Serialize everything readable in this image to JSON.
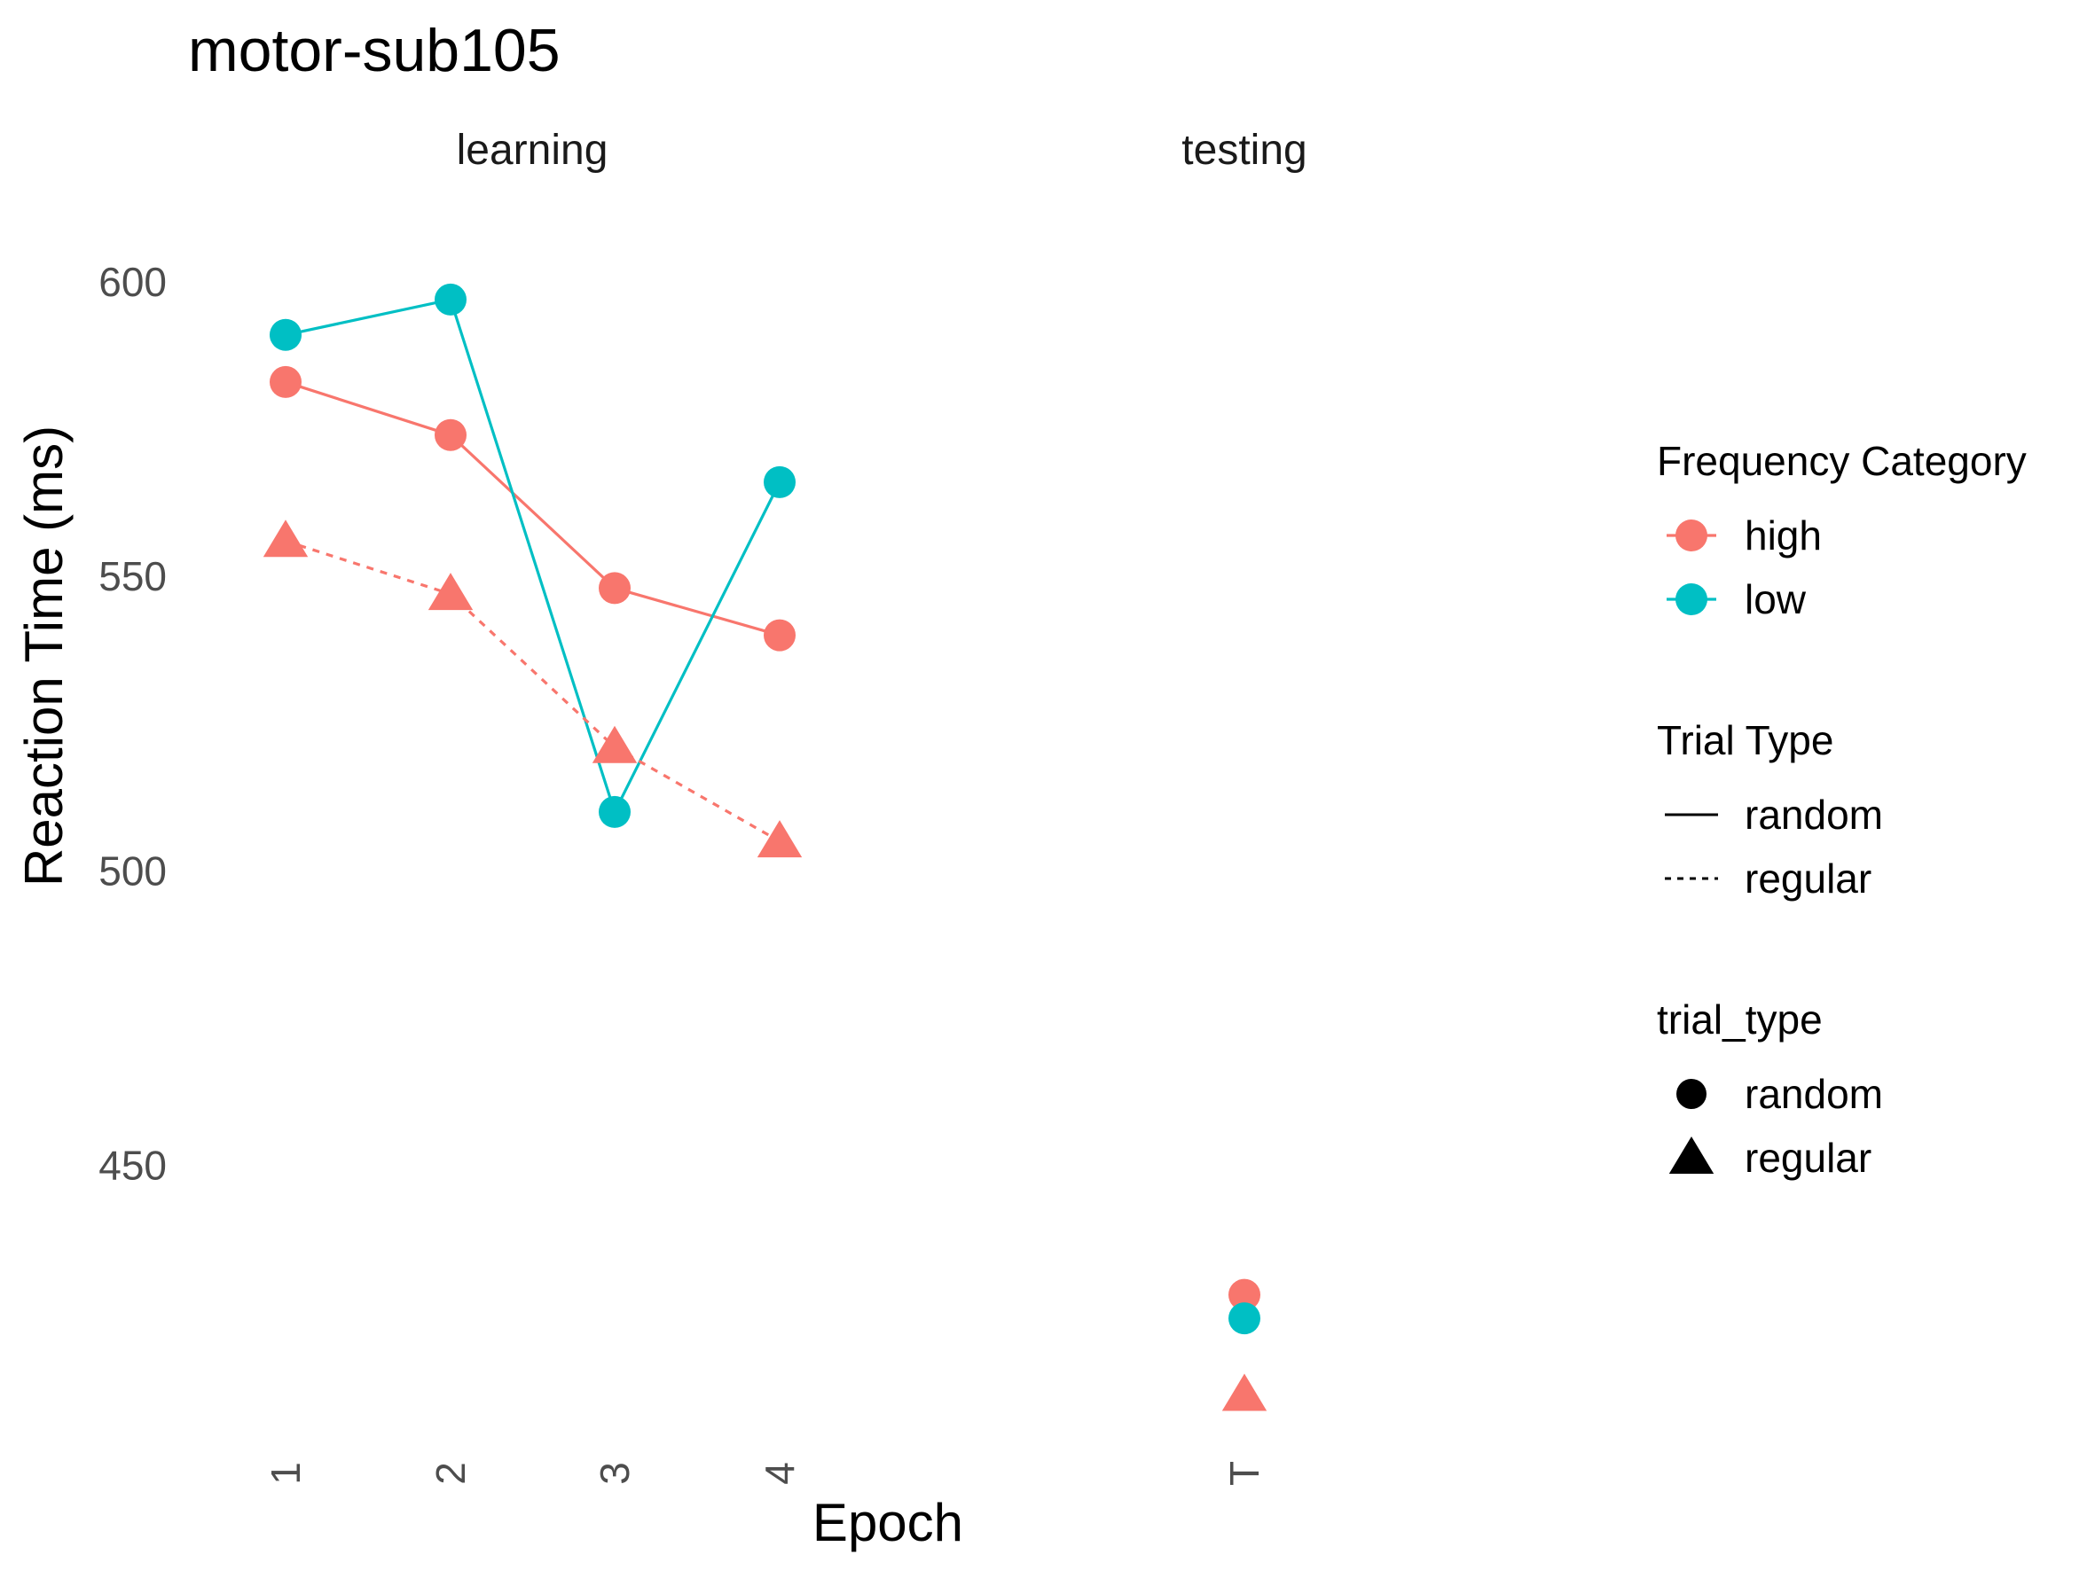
{
  "chart_data": {
    "type": "line",
    "title": "motor-sub105",
    "xlabel": "Epoch",
    "ylabel": "Reaction Time (ms)",
    "y_ticks": [
      450,
      500,
      550,
      600
    ],
    "ylim": [
      404,
      614
    ],
    "grid": false,
    "legend_position": "right",
    "colors": {
      "high": "#F8766D",
      "low": "#00BFC4"
    },
    "facets": [
      {
        "label": "learning",
        "categories": [
          "1",
          "2",
          "3",
          "4"
        ],
        "series": [
          {
            "frequency": "high",
            "trial_type": "random",
            "linetype": "solid",
            "shape": "circle",
            "values": [
              583,
              574,
              548,
              540
            ]
          },
          {
            "frequency": "low",
            "trial_type": "random",
            "linetype": "solid",
            "shape": "circle",
            "values": [
              591,
              597,
              510,
              566
            ]
          },
          {
            "frequency": "high",
            "trial_type": "regular",
            "linetype": "dashed",
            "shape": "triangle",
            "values": [
              556,
              547,
              521,
              505
            ]
          }
        ]
      },
      {
        "label": "testing",
        "categories": [
          "T"
        ],
        "series": [
          {
            "frequency": "high",
            "trial_type": "random",
            "linetype": "solid",
            "shape": "circle",
            "values": [
              428
            ]
          },
          {
            "frequency": "low",
            "trial_type": "random",
            "linetype": "solid",
            "shape": "circle",
            "values": [
              424
            ]
          },
          {
            "frequency": "high",
            "trial_type": "regular",
            "linetype": "dashed",
            "shape": "triangle",
            "values": [
              411
            ]
          }
        ]
      }
    ],
    "legends": [
      {
        "title": "Frequency Category",
        "kind": "color",
        "items": [
          {
            "label": "high",
            "key": "high"
          },
          {
            "label": "low",
            "key": "low"
          }
        ]
      },
      {
        "title": "Trial Type",
        "kind": "linetype",
        "items": [
          {
            "label": "random",
            "key": "solid"
          },
          {
            "label": "regular",
            "key": "dashed"
          }
        ]
      },
      {
        "title": "trial_type",
        "kind": "shape",
        "items": [
          {
            "label": "random",
            "key": "circle"
          },
          {
            "label": "regular",
            "key": "triangle"
          }
        ]
      }
    ]
  }
}
